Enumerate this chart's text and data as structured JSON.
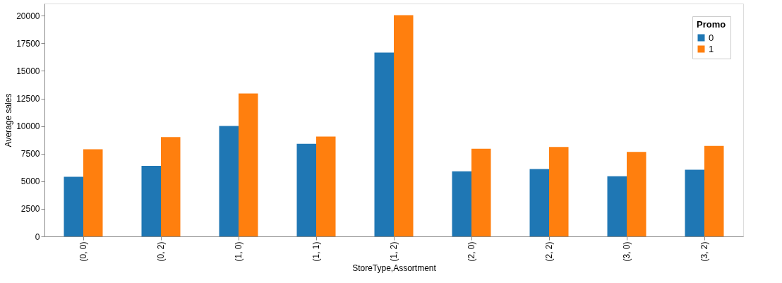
{
  "chart_data": {
    "type": "bar",
    "xlabel": "StoreType,Assortment",
    "ylabel": "Average sales",
    "legend_title": "Promo",
    "categories": [
      "(0, 0)",
      "(0, 2)",
      "(1, 0)",
      "(1, 1)",
      "(1, 2)",
      "(2, 0)",
      "(2, 2)",
      "(3, 0)",
      "(3, 2)"
    ],
    "series": [
      {
        "name": "0",
        "color": "#1f77b4",
        "values": [
          5400,
          6400,
          10000,
          8400,
          16650,
          5900,
          6100,
          5450,
          6050
        ]
      },
      {
        "name": "1",
        "color": "#ff7f0e",
        "values": [
          7900,
          9000,
          12950,
          9050,
          20050,
          7950,
          8100,
          7650,
          8200
        ]
      }
    ],
    "ylim": [
      0,
      21100
    ],
    "yticks": [
      0,
      2500,
      5000,
      7500,
      10000,
      12500,
      15000,
      17500,
      20000
    ],
    "grid": false,
    "legend": "top right"
  }
}
